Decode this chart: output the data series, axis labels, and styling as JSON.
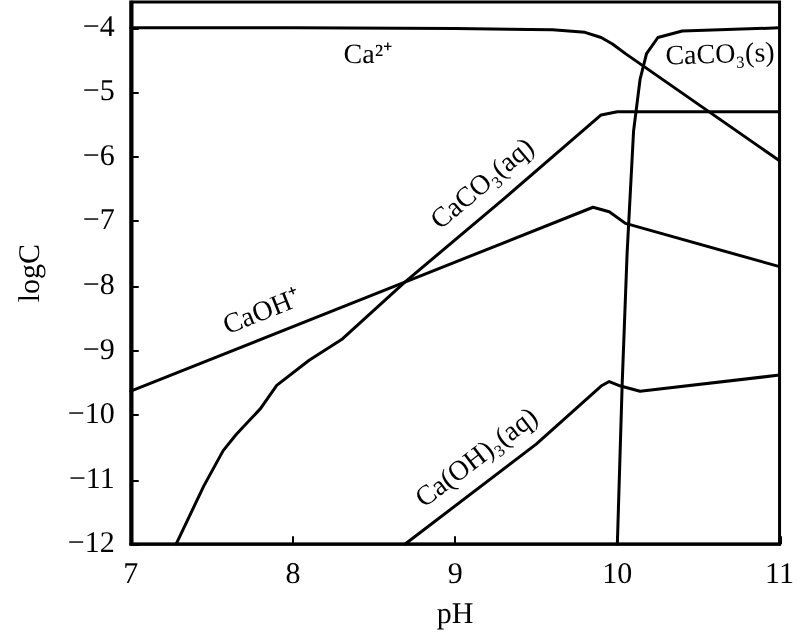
{
  "chart_data": {
    "type": "line",
    "xlabel": "pH",
    "ylabel": "logC",
    "xlim": [
      7,
      11
    ],
    "xticks": [
      7,
      8,
      9,
      10,
      11
    ],
    "ylim": [
      -12,
      -3.6
    ],
    "yticks": [
      -12,
      -11,
      -10,
      -9,
      -8,
      -7,
      -6,
      -5,
      -4
    ],
    "grid": false,
    "marker": "none",
    "line_style": "solid",
    "series": [
      {
        "name": "Ca²⁺",
        "color": "#000000",
        "x": [
          7,
          8,
          9,
          9.6,
          9.8,
          9.9,
          9.97,
          10.05,
          11
        ],
        "values": [
          -4,
          -4,
          -4.01,
          -4.03,
          -4.07,
          -4.15,
          -4.25,
          -4.4,
          -6.06
        ]
      },
      {
        "name": "CaCO₃(s)",
        "color": "#000000",
        "x": [
          10.0,
          10.03,
          10.06,
          10.1,
          10.14,
          10.18,
          10.25,
          10.4,
          11
        ],
        "values": [
          -12,
          -9.5,
          -7.5,
          -5.6,
          -4.8,
          -4.4,
          -4.15,
          -4.05,
          -4.0
        ]
      },
      {
        "name": "CaCO₃(aq)",
        "color": "#000000",
        "x": [
          7.28,
          7.45,
          7.57,
          7.65,
          7.8,
          7.9,
          8.1,
          8.3,
          8.69,
          9.3,
          9.9,
          10.0,
          11
        ],
        "values": [
          -12,
          -11.1,
          -10.55,
          -10.3,
          -9.9,
          -9.54,
          -9.15,
          -8.83,
          -7.94,
          -6.65,
          -5.35,
          -5.3,
          -5.3
        ]
      },
      {
        "name": "CaOH⁺",
        "color": "#000000",
        "x": [
          7,
          8.69,
          9.85,
          9.95,
          10.05,
          11
        ],
        "values": [
          -9.63,
          -7.94,
          -6.78,
          -6.85,
          -7.03,
          -7.7
        ]
      },
      {
        "name": "Ca(OH)₃(aq)",
        "color": "#000000",
        "x": [
          8.69,
          9.5,
          9.9,
          9.95,
          10.02,
          10.14,
          11
        ],
        "values": [
          -12,
          -10.45,
          -9.55,
          -9.48,
          -9.55,
          -9.63,
          -9.38
        ]
      }
    ]
  }
}
